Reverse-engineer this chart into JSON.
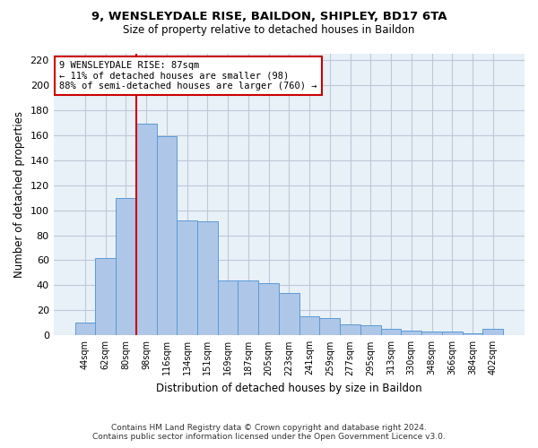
{
  "title_line1": "9, WENSLEYDALE RISE, BAILDON, SHIPLEY, BD17 6TA",
  "title_line2": "Size of property relative to detached houses in Baildon",
  "xlabel": "Distribution of detached houses by size in Baildon",
  "ylabel": "Number of detached properties",
  "footer_line1": "Contains HM Land Registry data © Crown copyright and database right 2024.",
  "footer_line2": "Contains public sector information licensed under the Open Government Licence v3.0.",
  "annotation_line1": "9 WENSLEYDALE RISE: 87sqm",
  "annotation_line2": "← 11% of detached houses are smaller (98)",
  "annotation_line3": "88% of semi-detached houses are larger (760) →",
  "bar_values": [
    10,
    62,
    110,
    169,
    159,
    92,
    91,
    44,
    44,
    42,
    34,
    15,
    14,
    9,
    8,
    5,
    4,
    3,
    3,
    2,
    5
  ],
  "bar_labels": [
    "44sqm",
    "62sqm",
    "80sqm",
    "98sqm",
    "116sqm",
    "134sqm",
    "151sqm",
    "169sqm",
    "187sqm",
    "205sqm",
    "223sqm",
    "241sqm",
    "259sqm",
    "277sqm",
    "295sqm",
    "313sqm",
    "330sqm",
    "348sqm",
    "366sqm",
    "384sqm",
    "402sqm"
  ],
  "property_line_bin_index": 2.5,
  "bar_color": "#aec6e8",
  "bar_edge_color": "#5b9bd5",
  "property_line_color": "#cc0000",
  "annotation_box_edge_color": "#cc0000",
  "background_color": "#ffffff",
  "axes_background_color": "#e8f0f8",
  "grid_color": "#c0c8d8",
  "ylim": [
    0,
    225
  ],
  "yticks": [
    0,
    20,
    40,
    60,
    80,
    100,
    120,
    140,
    160,
    180,
    200,
    220
  ]
}
